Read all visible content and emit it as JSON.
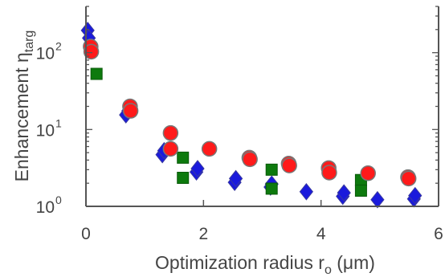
{
  "chart_data": {
    "type": "scatter",
    "x_axis": {
      "label_main": "Optimization radius r",
      "label_sub": "o",
      "label_unit": " (μm)",
      "lim": [
        0,
        6
      ],
      "ticks": [
        0,
        2,
        4,
        6
      ],
      "tick_labels": [
        "0",
        "2",
        "4",
        "6"
      ]
    },
    "y_axis": {
      "label_main": "Enhancement η",
      "label_sub": "targ",
      "scale": "log",
      "lim": [
        1,
        400
      ],
      "ticks": [
        1,
        10,
        100
      ],
      "tick_labels": [
        {
          "base": "10",
          "exp": "0"
        },
        {
          "base": "10",
          "exp": "1"
        },
        {
          "base": "10",
          "exp": "2"
        }
      ]
    },
    "grid": false,
    "legend": "none",
    "series": [
      {
        "marker": "diamond",
        "color": "#1a1adc",
        "edge": "#3a3aa0",
        "points": [
          [
            0.03,
            195
          ],
          [
            0.05,
            155
          ],
          [
            0.68,
            15.5
          ],
          [
            0.72,
            17.5
          ],
          [
            1.3,
            4.7
          ],
          [
            1.33,
            5.3
          ],
          [
            1.88,
            2.8
          ],
          [
            1.9,
            3.1
          ],
          [
            2.53,
            2.05
          ],
          [
            2.55,
            2.3
          ],
          [
            3.14,
            1.78
          ],
          [
            3.16,
            1.95
          ],
          [
            3.75,
            1.55
          ],
          [
            4.37,
            1.35
          ],
          [
            4.39,
            1.5
          ],
          [
            4.96,
            1.22
          ],
          [
            5.58,
            1.25
          ],
          [
            5.6,
            1.38
          ]
        ]
      },
      {
        "marker": "square",
        "color": "#0d7a0d",
        "edge": "#0a5a0a",
        "points": [
          [
            0.18,
            53
          ],
          [
            1.65,
            4.3
          ],
          [
            1.65,
            2.35
          ],
          [
            3.16,
            3.0
          ],
          [
            3.16,
            1.7
          ],
          [
            4.68,
            2.2
          ],
          [
            4.68,
            1.6
          ]
        ]
      },
      {
        "marker": "circle",
        "color": "#ff1a1a",
        "edge": "#777777",
        "points": [
          [
            0.08,
            120
          ],
          [
            0.09,
            103
          ],
          [
            0.75,
            20
          ],
          [
            0.76,
            17.5
          ],
          [
            1.44,
            9.0
          ],
          [
            1.44,
            5.6
          ],
          [
            2.1,
            5.6
          ],
          [
            2.78,
            4.3
          ],
          [
            2.79,
            4.1
          ],
          [
            3.45,
            3.6
          ],
          [
            3.46,
            3.4
          ],
          [
            4.13,
            3.15
          ],
          [
            4.14,
            2.75
          ],
          [
            4.8,
            2.7
          ],
          [
            5.48,
            2.4
          ],
          [
            5.49,
            2.3
          ]
        ]
      }
    ]
  }
}
